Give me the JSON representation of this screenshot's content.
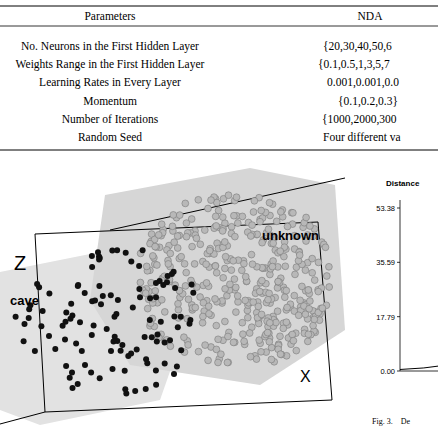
{
  "table": {
    "header": [
      "Parameters",
      "NDA"
    ],
    "rows": [
      [
        "No. Neurons in the First Hidden Layer",
        "{20,30,40,50,6"
      ],
      [
        "Weights Range in the First Hidden Layer",
        "{0.1,0.5,1,3,5,7"
      ],
      [
        "Learning Rates in Every Layer",
        "0.001,0.001,0.0"
      ],
      [
        "Momentum",
        "{0.1,0.2,0.3}"
      ],
      [
        "Number of Iterations",
        "{1000,2000,300"
      ],
      [
        "Random Seed",
        "Four different va"
      ]
    ]
  },
  "figure": {
    "z_axis": "Z",
    "x_axis": "X",
    "cluster_left": "cave",
    "cluster_right": "unknown"
  },
  "chart_data": {
    "type": "line",
    "y_label": "Distance",
    "ylim": [
      0,
      56
    ],
    "xlim": [
      0,
      10
    ],
    "yticks": [
      {
        "value": 0,
        "label": "0.00"
      },
      {
        "value": 17.79,
        "label": "17.79"
      },
      {
        "value": 35.59,
        "label": "35.59"
      },
      {
        "value": 53.38,
        "label": "53.38"
      }
    ],
    "tick_labels": "y",
    "series": [
      {
        "x": [
          0,
          1,
          2,
          3
        ],
        "values": [
          0.5,
          1,
          2,
          3.5
        ],
        "color": "#000000"
      }
    ]
  },
  "caption": "Fig. 3.    De"
}
